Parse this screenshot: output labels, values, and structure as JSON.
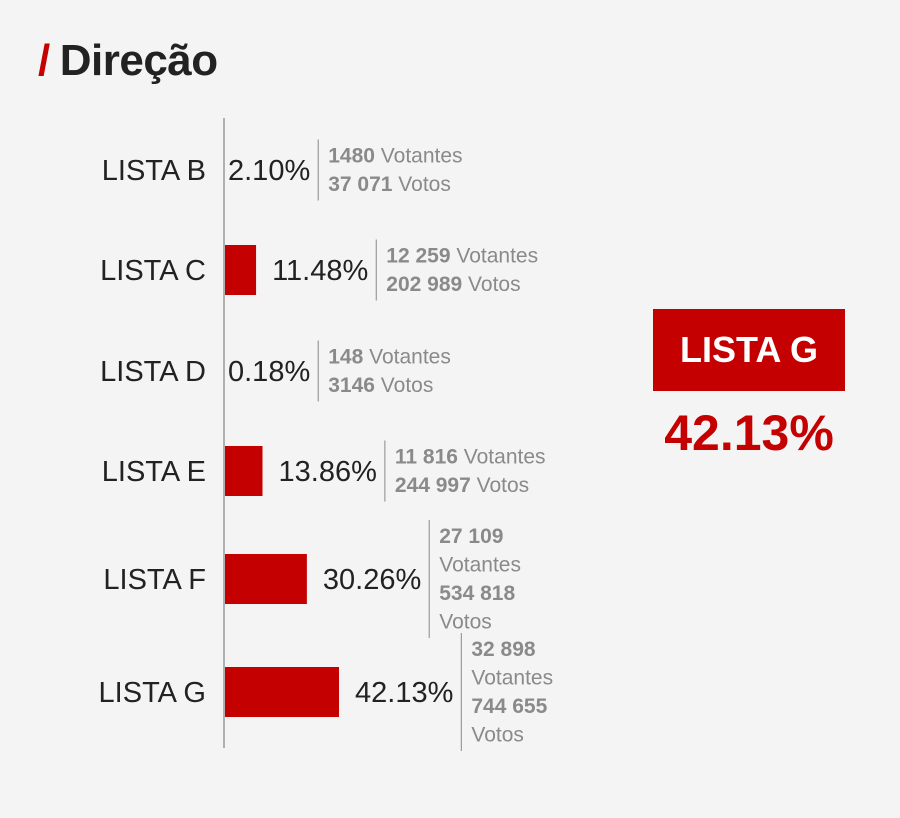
{
  "header": {
    "slash": "/",
    "title": "Direção"
  },
  "colors": {
    "accent": "#c40000",
    "text": "#222222",
    "muted": "#8a8a8a",
    "axis": "#9a9a9a",
    "background": "#f4f4f4"
  },
  "winner": {
    "label": "LISTA G",
    "percent": "42.13%"
  },
  "chart_data": {
    "type": "bar",
    "orientation": "horizontal",
    "title": "Direção",
    "categories": [
      "LISTA B",
      "LISTA C",
      "LISTA D",
      "LISTA E",
      "LISTA F",
      "LISTA G"
    ],
    "values": [
      2.1,
      11.48,
      0.18,
      13.86,
      30.26,
      42.13
    ],
    "value_labels": [
      "2.10%",
      "11.48%",
      "0.18%",
      "13.86%",
      "30.26%",
      "42.13%"
    ],
    "unit": "%",
    "xlim": [
      0,
      42.13
    ],
    "grid": false,
    "bar_color": "#c40000",
    "details": [
      {
        "votantes_value": "1480",
        "votantes_label": "Votantes",
        "votos_value": "37 071",
        "votos_label": "Votos",
        "wrapped": false
      },
      {
        "votantes_value": "12 259",
        "votantes_label": "Votantes",
        "votos_value": "202 989",
        "votos_label": "Votos",
        "wrapped": false
      },
      {
        "votantes_value": "148",
        "votantes_label": "Votantes",
        "votos_value": "3146",
        "votos_label": "Votos",
        "wrapped": false
      },
      {
        "votantes_value": "11 816",
        "votantes_label": "Votantes",
        "votos_value": "244 997",
        "votos_label": "Votos",
        "wrapped": false
      },
      {
        "votantes_value": "27 109",
        "votantes_label": "Votantes",
        "votos_value": "534 818",
        "votos_label": "Votos",
        "wrapped": true
      },
      {
        "votantes_value": "32 898",
        "votantes_label": "Votantes",
        "votos_value": "744 655",
        "votos_label": "Votos",
        "wrapped": true
      }
    ]
  }
}
